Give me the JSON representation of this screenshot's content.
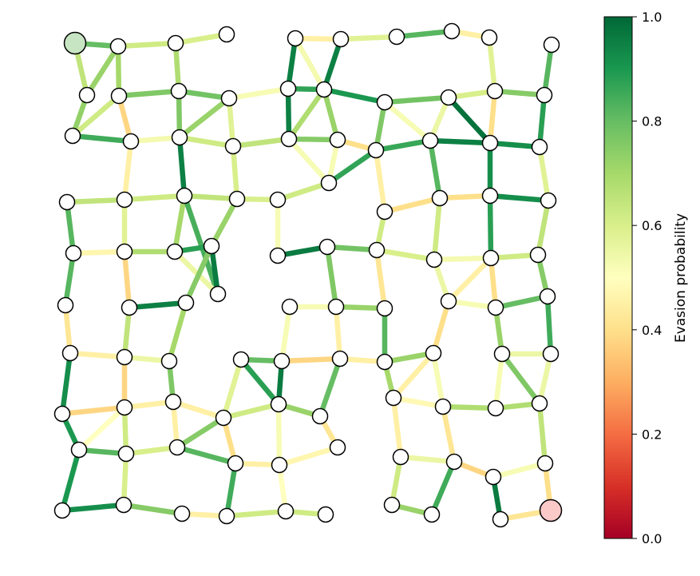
{
  "colorbar": {
    "label": "Evasion probability",
    "ticks": [
      "0.0",
      "0.2",
      "0.4",
      "0.6",
      "0.8",
      "1.0"
    ],
    "tick_values": [
      0.0,
      0.2,
      0.4,
      0.6,
      0.8,
      1.0
    ],
    "colormap": "RdYlGn",
    "stops": [
      "#a50026",
      "#d73027",
      "#f46d43",
      "#fdae61",
      "#fee08b",
      "#ffffbf",
      "#d9ef8b",
      "#a6d96a",
      "#66bd63",
      "#1a9850",
      "#006837"
    ]
  },
  "graph": {
    "node_fill": "#ffffff",
    "start_node_fill": "#c7e5c3",
    "goal_node_fill": "#fcc9c9",
    "edge_count": 137,
    "node_count": 104
  }
}
